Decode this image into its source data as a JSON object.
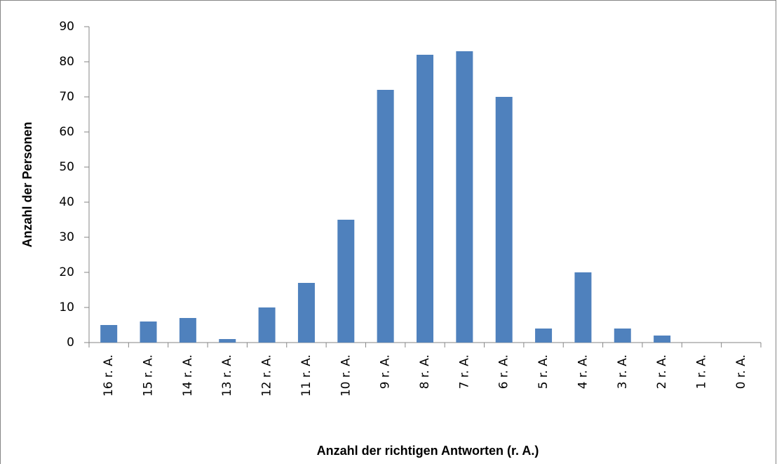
{
  "chart_data": {
    "type": "bar",
    "x_label": "Anzahl der richtigen Antworten (r. A.)",
    "y_label": "Anzahl der Personen",
    "categories": [
      "16 r. A.",
      "15 r. A.",
      "14 r. A.",
      "13 r. A.",
      "12 r. A.",
      "11 r. A.",
      "10 r. A.",
      "9 r. A.",
      "8 r. A.",
      "7 r. A.",
      "6 r. A.",
      "5 r. A.",
      "4 r. A.",
      "3 r. A.",
      "2 r. A.",
      "1 r. A.",
      "0 r. A."
    ],
    "values": [
      5,
      6,
      7,
      1,
      10,
      17,
      35,
      72,
      82,
      83,
      70,
      4,
      20,
      4,
      2,
      0,
      0
    ],
    "color": "#4f81bd",
    "ylim": [
      0,
      90
    ],
    "yticks": [
      0,
      10,
      20,
      30,
      40,
      50,
      60,
      70,
      80,
      90
    ],
    "grid": false
  }
}
